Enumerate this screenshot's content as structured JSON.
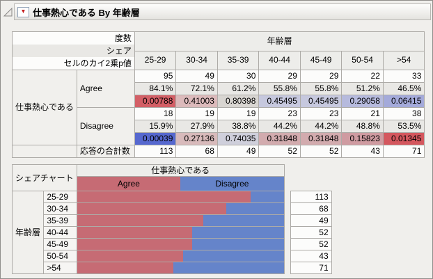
{
  "window": {
    "title": "仕事熱心である By 年齢層"
  },
  "icons": {
    "disclosure_triangle": "open-outline-triangle",
    "red_triangle_menu": "▼",
    "red_triangle_color": "#c41e1e"
  },
  "contingency": {
    "stat_labels": [
      "度数",
      "シェア",
      "セルのカイ2乗p値"
    ],
    "column_group": "年齢層",
    "columns": [
      "25-29",
      "30-34",
      "35-39",
      "40-44",
      "45-49",
      "50-54",
      ">54"
    ],
    "row_group": "仕事熱心である",
    "total_label": "応答の合計数",
    "totals": [
      "113",
      "68",
      "49",
      "52",
      "52",
      "43",
      "71"
    ],
    "rows": [
      {
        "label": "Agree",
        "counts": [
          "95",
          "49",
          "30",
          "29",
          "29",
          "22",
          "33"
        ],
        "shares": [
          "84.1%",
          "72.1%",
          "61.2%",
          "55.8%",
          "55.8%",
          "51.2%",
          "46.5%"
        ],
        "pvalues": [
          "0.00788",
          "0.41003",
          "0.80398",
          "0.45495",
          "0.45495",
          "0.29058",
          "0.06415"
        ],
        "pcolors": [
          "#d35f66",
          "#dcbabb",
          "#d8d5d1",
          "#c6c8de",
          "#c6c8de",
          "#b6badd",
          "#a4aada"
        ]
      },
      {
        "label": "Disagree",
        "counts": [
          "18",
          "19",
          "19",
          "23",
          "23",
          "21",
          "38"
        ],
        "shares": [
          "15.9%",
          "27.9%",
          "38.8%",
          "44.2%",
          "44.2%",
          "48.8%",
          "53.5%"
        ],
        "pvalues": [
          "0.00039",
          "0.27136",
          "0.74035",
          "0.31848",
          "0.31848",
          "0.15823",
          "0.01345"
        ],
        "pcolors": [
          "#5668cf",
          "#d8babb",
          "#cfcfdb",
          "#d2abae",
          "#d2abae",
          "#cf9ba1",
          "#d4575e"
        ]
      }
    ]
  },
  "share_chart": {
    "header": "シェアチャート",
    "group_header": "仕事熱心である",
    "axis_label": "年齢層",
    "agree_color": "#c66b74",
    "disagree_color": "#6584ca",
    "legend": [
      {
        "label": "Agree",
        "color": "#c66b74"
      },
      {
        "label": "Disagree",
        "color": "#6584ca"
      }
    ],
    "rows": [
      {
        "category": "25-29",
        "agree_pct": 84.1,
        "total": "113"
      },
      {
        "category": "30-34",
        "agree_pct": 72.1,
        "total": "68"
      },
      {
        "category": "35-39",
        "agree_pct": 61.2,
        "total": "49"
      },
      {
        "category": "40-44",
        "agree_pct": 55.8,
        "total": "52"
      },
      {
        "category": "45-49",
        "agree_pct": 55.8,
        "total": "52"
      },
      {
        "category": "50-54",
        "agree_pct": 51.2,
        "total": "43"
      },
      {
        "category": ">54",
        "agree_pct": 46.5,
        "total": "71"
      }
    ]
  }
}
